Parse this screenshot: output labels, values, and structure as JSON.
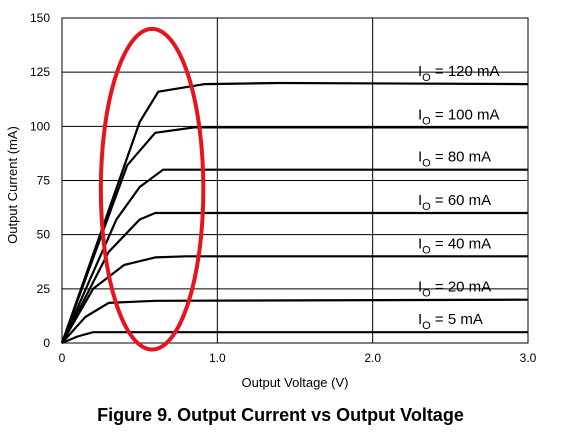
{
  "caption": "Figure 9. Output Current vs Output Voltage",
  "colors": {
    "curve": "#000000",
    "annotation_ellipse": "#e8141c",
    "grid": "#000000"
  },
  "chart_data": {
    "type": "line",
    "title": "",
    "xlabel": "Output Voltage (V)",
    "ylabel": "Output Current (mA)",
    "xlim": [
      0,
      3.0
    ],
    "ylim": [
      0,
      150
    ],
    "x_ticks": [
      0,
      1.0,
      2.0,
      3.0
    ],
    "x_tick_labels": [
      "0",
      "1.0",
      "2.0",
      "3.0"
    ],
    "y_ticks": [
      0,
      25,
      50,
      75,
      100,
      125,
      150
    ],
    "y_tick_labels": [
      "0",
      "25",
      "50",
      "75",
      "100",
      "125",
      "150"
    ],
    "grid": true,
    "series": [
      {
        "name": "I",
        "subscript": "O",
        "suffix": " = 5 mA",
        "points": [
          [
            0,
            0
          ],
          [
            0.1,
            3
          ],
          [
            0.2,
            5
          ],
          [
            3.0,
            5
          ]
        ]
      },
      {
        "name": "I",
        "subscript": "O",
        "suffix": " = 20 mA",
        "points": [
          [
            0,
            0
          ],
          [
            0.15,
            12
          ],
          [
            0.3,
            18.5
          ],
          [
            0.6,
            19.5
          ],
          [
            3.0,
            20
          ]
        ]
      },
      {
        "name": "I",
        "subscript": "O",
        "suffix": " = 40 mA",
        "points": [
          [
            0,
            0
          ],
          [
            0.2,
            25
          ],
          [
            0.4,
            36
          ],
          [
            0.6,
            39.5
          ],
          [
            0.8,
            40
          ],
          [
            3.0,
            40
          ]
        ]
      },
      {
        "name": "I",
        "subscript": "O",
        "suffix": " = 60 mA",
        "points": [
          [
            0,
            0
          ],
          [
            0.3,
            42
          ],
          [
            0.5,
            57
          ],
          [
            0.6,
            60
          ],
          [
            3.0,
            60
          ]
        ]
      },
      {
        "name": "I",
        "subscript": "O",
        "suffix": " = 80 mA",
        "points": [
          [
            0,
            0
          ],
          [
            0.35,
            57
          ],
          [
            0.5,
            72
          ],
          [
            0.65,
            80
          ],
          [
            3.0,
            80
          ]
        ]
      },
      {
        "name": "I",
        "subscript": "O",
        "suffix": " = 100 mA",
        "points": [
          [
            0,
            0
          ],
          [
            0.42,
            82
          ],
          [
            0.6,
            97
          ],
          [
            0.85,
            99.5
          ],
          [
            3.0,
            99.5
          ]
        ]
      },
      {
        "name": "I",
        "subscript": "O",
        "suffix": " = 120 mA",
        "points": [
          [
            0,
            0
          ],
          [
            0.5,
            102
          ],
          [
            0.62,
            116
          ],
          [
            0.92,
            119.5
          ],
          [
            1.4,
            120
          ],
          [
            3.0,
            119.5
          ]
        ]
      }
    ],
    "annotations": [
      {
        "type": "ellipse",
        "color": "#e8141c",
        "cx": 0.58,
        "cy": 71,
        "rx": 0.33,
        "ry": 74
      }
    ]
  }
}
